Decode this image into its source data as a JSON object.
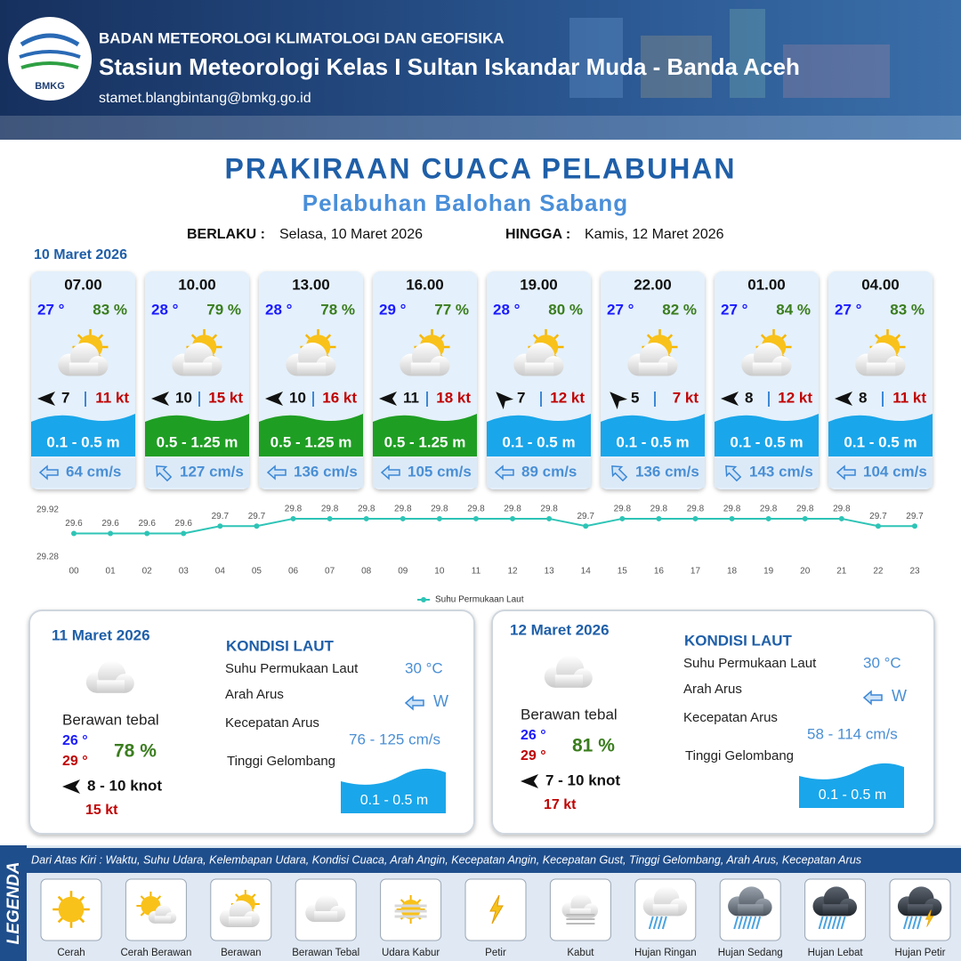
{
  "header": {
    "logo_text": "BMKG",
    "agency": "BADAN METEOROLOGI KLIMATOLOGI DAN GEOFISIKA",
    "station": "Stasiun Meteorologi Kelas I Sultan Iskandar Muda - Banda Aceh",
    "email": "stamet.blangbintang@bmkg.go.id"
  },
  "title": "PRAKIRAAN CUACA PELABUHAN",
  "subtitle": "Pelabuhan Balohan Sabang",
  "validity": {
    "from_label": "BERLAKU :",
    "from": "Selasa, 10 Maret 2026",
    "to_label": "HINGGA :",
    "to": "Kamis, 12 Maret 2026"
  },
  "today": {
    "date": "10 Maret 2026",
    "forecasts": [
      {
        "time": "07.00",
        "temp": "27 °",
        "humidity": "83 %",
        "wind": "7",
        "gust": "11 kt",
        "wave": "0.1 - 0.5 m",
        "wave_color": "#1aa6ea",
        "current": "64 cm/s"
      },
      {
        "time": "10.00",
        "temp": "28 °",
        "humidity": "79 %",
        "wind": "10",
        "gust": "15 kt",
        "wave": "0.5 - 1.25 m",
        "wave_color": "#1f9e24",
        "current": "127 cm/s"
      },
      {
        "time": "13.00",
        "temp": "28 °",
        "humidity": "78 %",
        "wind": "10",
        "gust": "16 kt",
        "wave": "0.5 - 1.25 m",
        "wave_color": "#1f9e24",
        "current": "136 cm/s"
      },
      {
        "time": "16.00",
        "temp": "29 °",
        "humidity": "77 %",
        "wind": "11",
        "gust": "18 kt",
        "wave": "0.5 - 1.25 m",
        "wave_color": "#1f9e24",
        "current": "105 cm/s"
      },
      {
        "time": "19.00",
        "temp": "28 °",
        "humidity": "80 %",
        "wind": "7",
        "gust": "12 kt",
        "wave": "0.1 - 0.5 m",
        "wave_color": "#1aa6ea",
        "current": "89 cm/s"
      },
      {
        "time": "22.00",
        "temp": "27 °",
        "humidity": "82 %",
        "wind": "5",
        "gust": "7 kt",
        "wave": "0.1 - 0.5 m",
        "wave_color": "#1aa6ea",
        "current": "136 cm/s"
      },
      {
        "time": "01.00",
        "temp": "27 °",
        "humidity": "84 %",
        "wind": "8",
        "gust": "12 kt",
        "wave": "0.1 - 0.5 m",
        "wave_color": "#1aa6ea",
        "current": "143 cm/s"
      },
      {
        "time": "04.00",
        "temp": "27 °",
        "humidity": "83 %",
        "wind": "8",
        "gust": "11 kt",
        "wave": "0.1 - 0.5 m",
        "wave_color": "#1aa6ea",
        "current": "104 cm/s"
      }
    ]
  },
  "chart_data": {
    "type": "line",
    "x": [
      "00",
      "01",
      "02",
      "03",
      "04",
      "05",
      "06",
      "07",
      "08",
      "09",
      "10",
      "11",
      "12",
      "13",
      "14",
      "15",
      "16",
      "17",
      "18",
      "19",
      "20",
      "21",
      "22",
      "23"
    ],
    "series": [
      {
        "name": "Suhu Permukaan Laut",
        "color": "#2ec4b6",
        "values": [
          29.6,
          29.6,
          29.6,
          29.6,
          29.7,
          29.7,
          29.8,
          29.8,
          29.8,
          29.8,
          29.8,
          29.8,
          29.8,
          29.8,
          29.7,
          29.8,
          29.8,
          29.8,
          29.8,
          29.8,
          29.8,
          29.8,
          29.7,
          29.7
        ]
      }
    ],
    "ylim": [
      29.28,
      29.92
    ],
    "yticks": [
      29.28,
      29.92
    ],
    "grid": false
  },
  "outlook": [
    {
      "date": "11 Maret 2026",
      "condition": "Berawan tebal",
      "temp_min": "26 °",
      "temp_max": "29 °",
      "humidity": "78 %",
      "wind": "8  - 10 knot",
      "gust": "15 kt",
      "sea": {
        "heading": "KONDISI LAUT",
        "sst_label": "Suhu Permukaan Laut",
        "sst": "30 °C",
        "current_dir_label": "Arah Arus",
        "current_dir": "W",
        "current_speed_label": "Kecepatan Arus",
        "current_speed": "76  - 125 cm/s",
        "wave_label": "Tinggi Gelombang",
        "wave": "0.1 - 0.5 m"
      }
    },
    {
      "date": "12 Maret 2026",
      "condition": "Berawan tebal",
      "temp_min": "26 °",
      "temp_max": "29 °",
      "humidity": "81 %",
      "wind": "7  - 10 knot",
      "gust": "17 kt",
      "sea": {
        "heading": "KONDISI LAUT",
        "sst_label": "Suhu Permukaan Laut",
        "sst": "30 °C",
        "current_dir_label": "Arah Arus",
        "current_dir": "W",
        "current_speed_label": "Kecepatan Arus",
        "current_speed": "58  - 114 cm/s",
        "wave_label": "Tinggi Gelombang",
        "wave": "0.1 - 0.5 m"
      }
    }
  ],
  "legend": {
    "title": "LEGENDA",
    "description": "Dari Atas Kiri : Waktu, Suhu Udara, Kelembapan Udara, Kondisi Cuaca, Arah Angin, Kecepatan Angin, Kecepatan Gust, Tinggi Gelombang, Arah Arus, Kecepatan Arus",
    "items": [
      "Cerah",
      "Cerah Berawan",
      "Berawan",
      "Berawan Tebal",
      "Udara Kabur",
      "Petir",
      "Kabut",
      "Hujan Ringan",
      "Hujan Sedang",
      "Hujan Lebat",
      "Hujan Petir"
    ]
  }
}
